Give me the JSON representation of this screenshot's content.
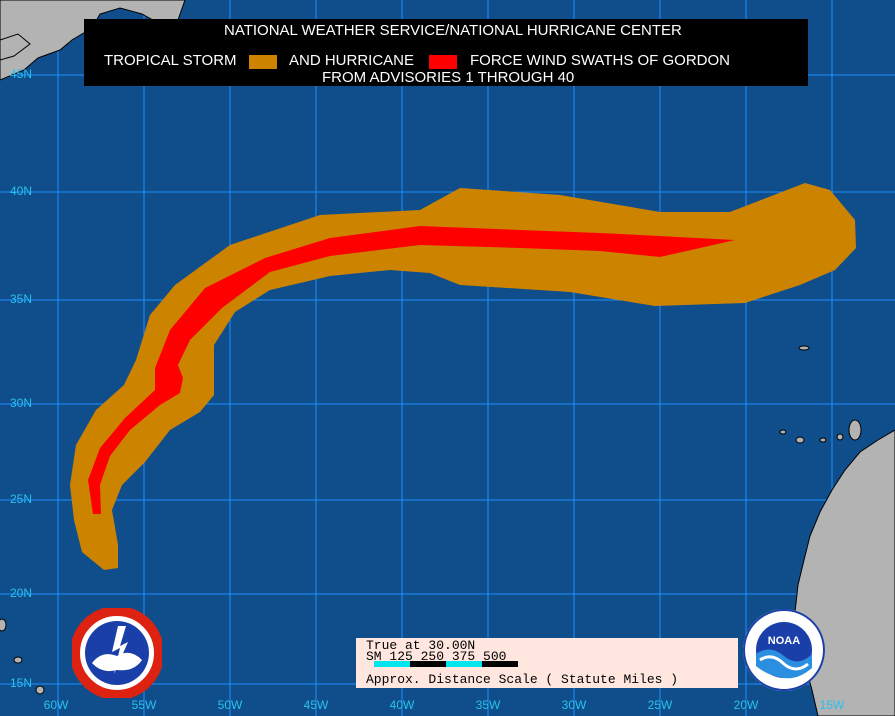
{
  "title": {
    "line1": "NATIONAL WEATHER SERVICE/NATIONAL HURRICANE CENTER",
    "legend_ts_label": "TROPICAL STORM",
    "legend_and": "AND HURRICANE",
    "legend_force_label": "FORCE WIND SWATHS OF GORDON",
    "line3": "FROM ADVISORIES 1 THROUGH 40"
  },
  "colors": {
    "ocean": "#104e8b",
    "grid": "#1e90ff",
    "tropical_storm": "#cc8400",
    "hurricane": "#ff0000",
    "land": "#b3b3b3",
    "label": "#29c1ee"
  },
  "latitude_labels": [
    "45N",
    "40N",
    "35N",
    "30N",
    "25N",
    "20N",
    "15N"
  ],
  "longitude_labels": [
    "60W",
    "55W",
    "50W",
    "45W",
    "40W",
    "35W",
    "30W",
    "25W",
    "20W",
    "15W"
  ],
  "scale": {
    "line1": "True at 30.00N",
    "line2": "SM  125  250  375  500",
    "line3": "Approx. Distance Scale ( Statute Miles )"
  },
  "logos": {
    "left": "nws-logo",
    "right": "noaa-logo",
    "right_text": "NOAA"
  }
}
